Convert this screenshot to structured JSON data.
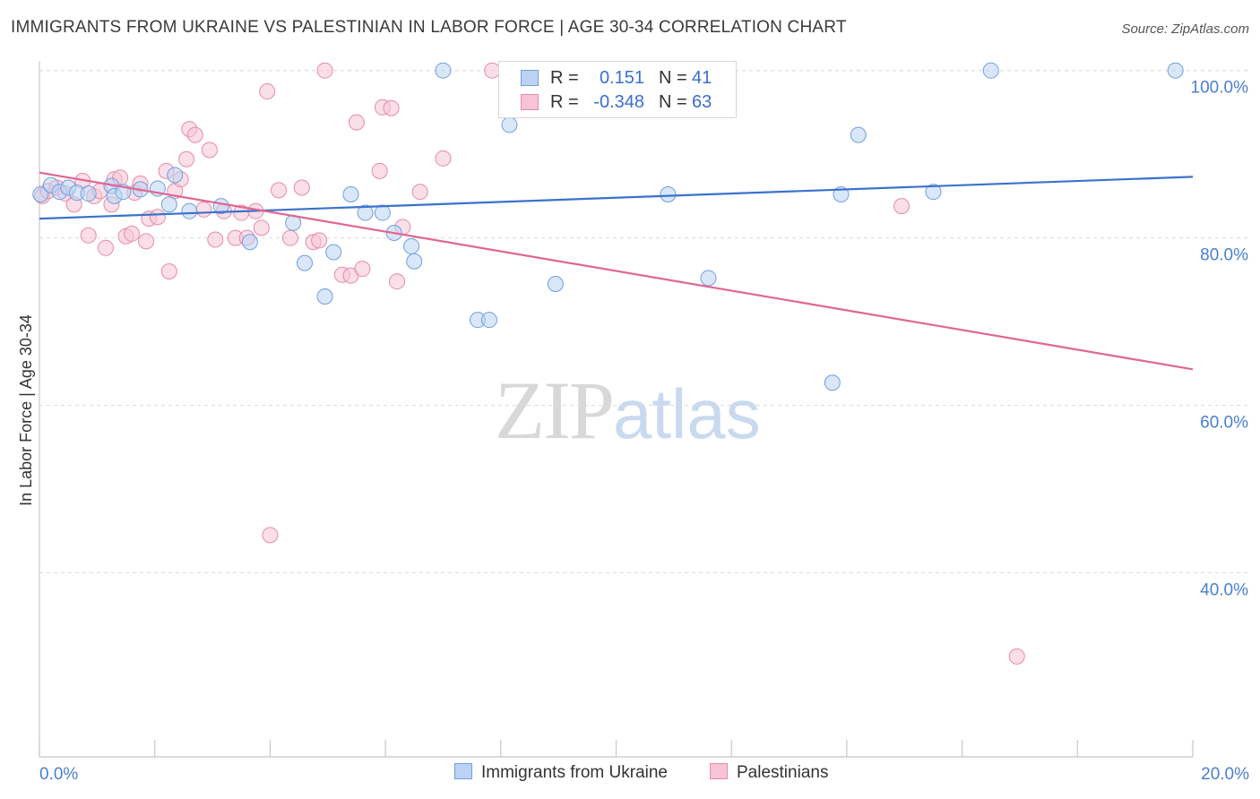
{
  "header": {
    "title": "IMMIGRANTS FROM UKRAINE VS PALESTINIAN IN LABOR FORCE | AGE 30-34 CORRELATION CHART",
    "source": "Source: ZipAtlas.com"
  },
  "watermark": {
    "zip": "ZIP",
    "atlas": "atlas"
  },
  "legend": {
    "rows": [
      {
        "r_label": "R =",
        "r_value": "0.151",
        "n_label": "N =",
        "n_value": "41"
      },
      {
        "r_label": "R =",
        "r_value": "-0.348",
        "n_label": "N =",
        "n_value": "63"
      }
    ]
  },
  "bottom_legend": {
    "series_a": "Immigrants from Ukraine",
    "series_b": "Palestinians"
  },
  "colors": {
    "blue_fill": "#bcd3f3",
    "blue_stroke": "#6f9fde",
    "blue_line": "#3a72cc",
    "pink_fill": "#f6c4d5",
    "pink_stroke": "#e889aa",
    "pink_line": "#e06693",
    "tick_text": "#4a7fd0",
    "grid": "#dcdcdc"
  },
  "chart_data": {
    "type": "scatter",
    "title": "IMMIGRANTS FROM UKRAINE VS PALESTINIAN IN LABOR FORCE | AGE 30-34 CORRELATION CHART",
    "xlabel": "",
    "ylabel": "In Labor Force | Age 30-34",
    "xlim": [
      0,
      20
    ],
    "ylim": [
      18,
      102
    ],
    "x_tick_labels": [
      "0.0%",
      "20.0%"
    ],
    "y_ticks": [
      40,
      60,
      80,
      100
    ],
    "y_tick_labels": [
      "40.0%",
      "60.0%",
      "80.0%",
      "100.0%"
    ],
    "series": [
      {
        "name": "Immigrants from Ukraine",
        "r": 0.151,
        "n": 41,
        "trend": {
          "x": [
            0,
            20
          ],
          "y": [
            82.3,
            87.3
          ]
        },
        "points": [
          [
            0.02,
            85.2
          ],
          [
            0.2,
            86.3
          ],
          [
            0.35,
            85.5
          ],
          [
            0.5,
            86.0
          ],
          [
            0.65,
            85.4
          ],
          [
            0.85,
            85.3
          ],
          [
            1.25,
            86.2
          ],
          [
            1.3,
            85.0
          ],
          [
            1.45,
            85.5
          ],
          [
            1.75,
            85.8
          ],
          [
            2.05,
            85.9
          ],
          [
            2.25,
            84.0
          ],
          [
            2.35,
            87.5
          ],
          [
            2.6,
            83.2
          ],
          [
            3.15,
            83.8
          ],
          [
            3.65,
            79.5
          ],
          [
            4.4,
            81.8
          ],
          [
            4.6,
            77.0
          ],
          [
            4.95,
            73.0
          ],
          [
            5.1,
            78.3
          ],
          [
            5.4,
            85.2
          ],
          [
            5.65,
            83.0
          ],
          [
            5.95,
            83.0
          ],
          [
            6.15,
            80.6
          ],
          [
            6.45,
            79.0
          ],
          [
            6.5,
            77.2
          ],
          [
            7.0,
            100.0
          ],
          [
            7.6,
            70.2
          ],
          [
            7.8,
            70.2
          ],
          [
            8.15,
            93.5
          ],
          [
            8.95,
            74.5
          ],
          [
            10.9,
            85.2
          ],
          [
            11.6,
            75.2
          ],
          [
            13.75,
            62.7
          ],
          [
            13.9,
            85.2
          ],
          [
            14.2,
            92.3
          ],
          [
            15.5,
            85.5
          ],
          [
            16.5,
            100.0
          ],
          [
            19.7,
            100.0
          ]
        ]
      },
      {
        "name": "Palestinians",
        "r": -0.348,
        "n": 63,
        "trend": {
          "x": [
            0,
            20
          ],
          "y": [
            87.8,
            64.3
          ]
        },
        "points": [
          [
            0.05,
            85.0
          ],
          [
            0.15,
            85.6
          ],
          [
            0.3,
            86.0
          ],
          [
            0.45,
            85.3
          ],
          [
            0.6,
            84.0
          ],
          [
            0.75,
            86.8
          ],
          [
            0.85,
            80.3
          ],
          [
            0.95,
            85.0
          ],
          [
            1.05,
            85.6
          ],
          [
            1.15,
            78.8
          ],
          [
            1.25,
            84.0
          ],
          [
            1.3,
            87.0
          ],
          [
            1.4,
            87.2
          ],
          [
            1.5,
            80.2
          ],
          [
            1.6,
            80.5
          ],
          [
            1.65,
            85.4
          ],
          [
            1.75,
            86.5
          ],
          [
            1.85,
            79.6
          ],
          [
            1.9,
            82.3
          ],
          [
            2.05,
            82.5
          ],
          [
            2.2,
            88.0
          ],
          [
            2.25,
            76.0
          ],
          [
            2.35,
            85.6
          ],
          [
            2.45,
            87.0
          ],
          [
            2.55,
            89.4
          ],
          [
            2.6,
            93.0
          ],
          [
            2.7,
            92.3
          ],
          [
            2.85,
            83.4
          ],
          [
            2.95,
            90.5
          ],
          [
            3.05,
            79.8
          ],
          [
            3.2,
            83.2
          ],
          [
            3.4,
            80.0
          ],
          [
            3.5,
            83.0
          ],
          [
            3.6,
            80.0
          ],
          [
            3.75,
            83.2
          ],
          [
            3.85,
            81.2
          ],
          [
            3.95,
            97.5
          ],
          [
            4.0,
            44.5
          ],
          [
            4.15,
            85.7
          ],
          [
            4.35,
            80.0
          ],
          [
            4.55,
            86.0
          ],
          [
            4.75,
            79.5
          ],
          [
            4.85,
            79.7
          ],
          [
            4.95,
            100.0
          ],
          [
            5.25,
            75.6
          ],
          [
            5.4,
            75.5
          ],
          [
            5.5,
            93.8
          ],
          [
            5.6,
            76.3
          ],
          [
            5.9,
            88.0
          ],
          [
            5.95,
            95.6
          ],
          [
            6.1,
            95.5
          ],
          [
            6.2,
            74.8
          ],
          [
            6.3,
            81.3
          ],
          [
            6.6,
            85.5
          ],
          [
            7.0,
            89.5
          ],
          [
            7.85,
            100.0
          ],
          [
            8.95,
            100.0
          ],
          [
            14.95,
            83.8
          ],
          [
            16.95,
            30.0
          ]
        ]
      }
    ]
  }
}
